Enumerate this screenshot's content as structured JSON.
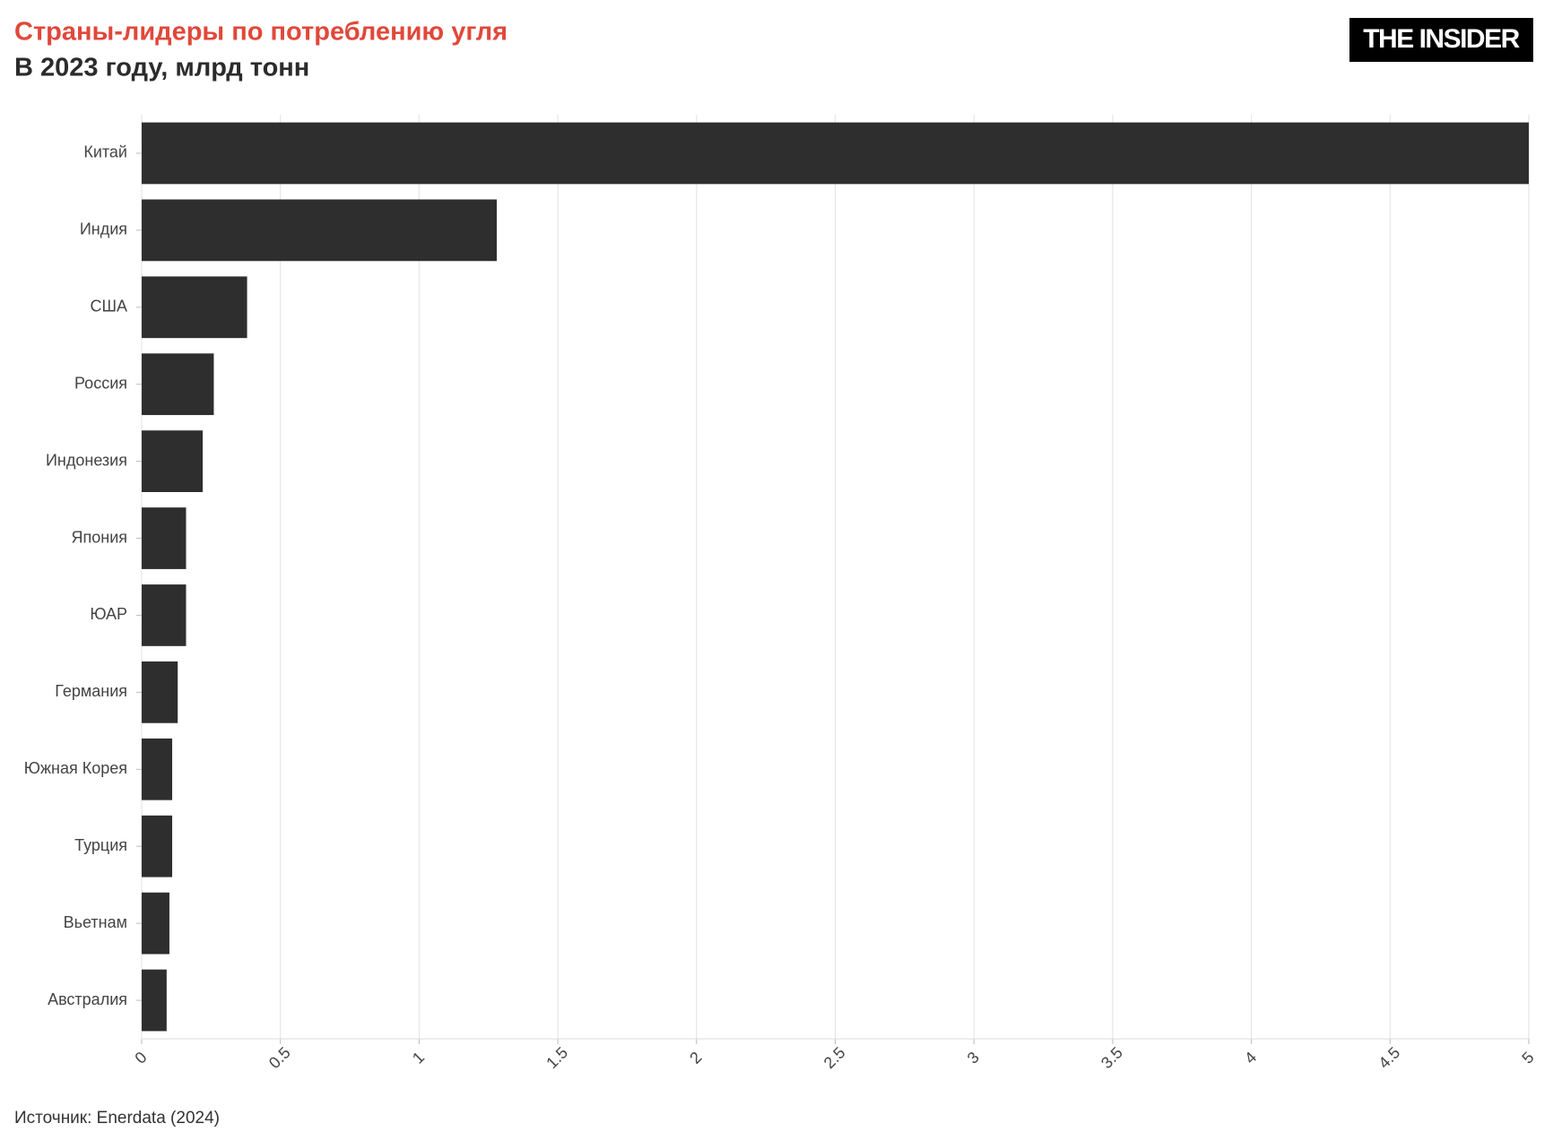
{
  "chart_data": {
    "type": "bar",
    "orientation": "horizontal",
    "title": "Страны-лидеры по потреблению угля",
    "subtitle": "В 2023 году, млрд тонн",
    "logo": "THE INSIDER",
    "source": "Источник: Enerdata (2024)",
    "categories": [
      "Китай",
      "Индия",
      "США",
      "Россия",
      "Индонезия",
      "Япония",
      "ЮАР",
      "Германия",
      "Южная Корея",
      "Турция",
      "Вьетнам",
      "Австралия"
    ],
    "values": [
      5.0,
      1.28,
      0.38,
      0.26,
      0.22,
      0.16,
      0.16,
      0.13,
      0.11,
      0.11,
      0.1,
      0.09
    ],
    "color": "#2e2e2e",
    "xlim": [
      0,
      5
    ],
    "xticks": [
      0,
      0.5,
      1,
      1.5,
      2,
      2.5,
      3,
      3.5,
      4,
      4.5,
      5
    ],
    "grid": true
  }
}
